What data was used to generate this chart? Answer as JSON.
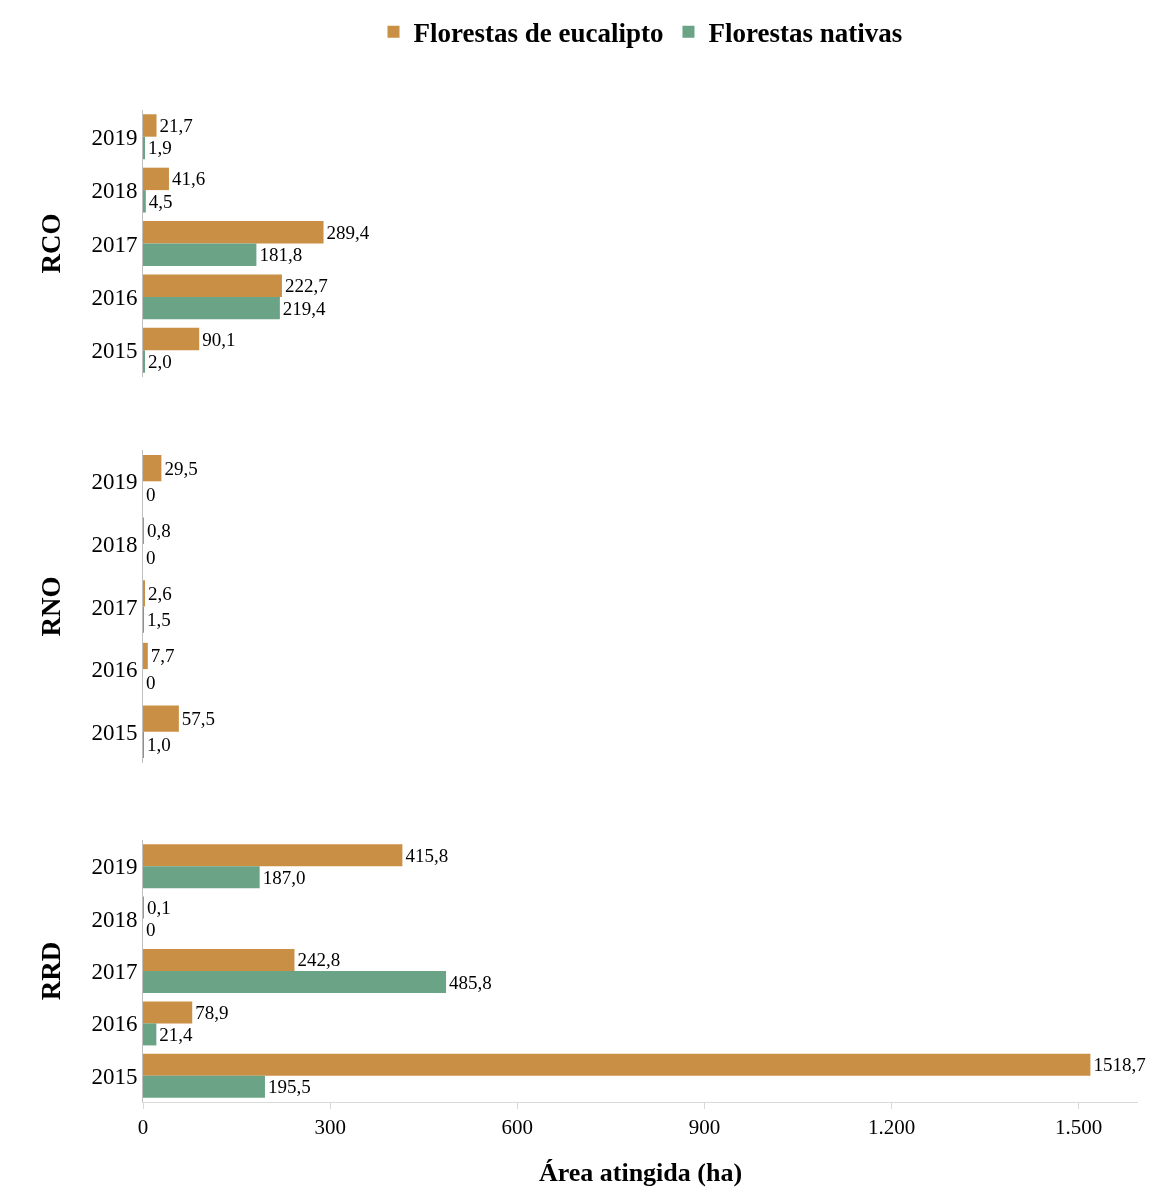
{
  "chart_data": [
    {
      "type": "bar",
      "orientation": "horizontal",
      "ylabel": "RCO",
      "categories": [
        "2019",
        "2018",
        "2017",
        "2016",
        "2015"
      ],
      "tick_labels": "y",
      "legend": "top",
      "grid": false,
      "series": [
        {
          "name": "Florestas de eucalipto",
          "color": "#c98f45",
          "values": [
            21.7,
            41.6,
            289.4,
            222.7,
            90.1
          ],
          "value_labels": [
            "21,7",
            "41,6",
            "289,4",
            "222,7",
            "90,1"
          ]
        },
        {
          "name": "Florestas nativas",
          "color": "#6aa386",
          "values": [
            1.9,
            4.5,
            181.8,
            219.4,
            2.0
          ],
          "value_labels": [
            "1,9",
            "4,5",
            "181,8",
            "219,4",
            "2,0"
          ]
        }
      ]
    },
    {
      "type": "bar",
      "orientation": "horizontal",
      "ylabel": "RNO",
      "categories": [
        "2019",
        "2018",
        "2017",
        "2016",
        "2015"
      ],
      "tick_labels": "y",
      "grid": false,
      "series": [
        {
          "color": "#c98f45",
          "values": [
            29.5,
            0.8,
            2.6,
            7.7,
            57.5
          ],
          "value_labels": [
            "29,5",
            "0,8",
            "2,6",
            "7,7",
            "57,5"
          ]
        },
        {
          "color": "#6aa386",
          "values": [
            0,
            0,
            1.5,
            0,
            1.0
          ],
          "value_labels": [
            "0",
            "0",
            "1,5",
            "0",
            "1,0"
          ]
        }
      ]
    },
    {
      "type": "bar",
      "orientation": "horizontal",
      "ylabel": "RRD",
      "xlabel": "Área atingida (ha)",
      "categories": [
        "2019",
        "2018",
        "2017",
        "2016",
        "2015"
      ],
      "xlim": [
        0,
        1595
      ],
      "xticks": [
        0,
        300,
        600,
        900,
        {
          "value": 1200,
          "label": "1.200"
        },
        {
          "value": 1500,
          "label": "1.500"
        }
      ],
      "grid": false,
      "series": [
        {
          "color": "#c98f45",
          "values": [
            415.8,
            0.1,
            242.8,
            78.9,
            1518.7
          ],
          "value_labels": [
            "415,8",
            "0,1",
            "242,8",
            "78,9",
            "1518,7"
          ]
        },
        {
          "color": "#6aa386",
          "values": [
            187.0,
            0,
            485.8,
            21.4,
            195.5
          ],
          "value_labels": [
            "187,0",
            "0",
            "485,8",
            "21,4",
            "195,5"
          ]
        }
      ]
    }
  ]
}
